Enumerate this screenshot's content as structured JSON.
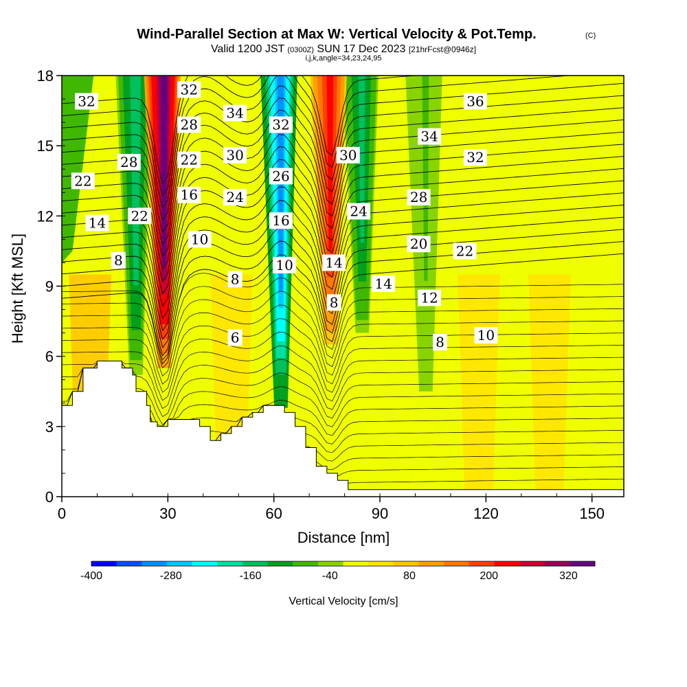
{
  "chart_data": {
    "type": "heatmap",
    "title": "Wind-Parallel Section at Max W: Vertical Velocity & Pot.Temp.",
    "copyright": "(C)",
    "subtitle_main": "Valid 1200 JST",
    "subtitle_utc": "(0300Z)",
    "subtitle_date": "SUN 17 Dec 2023",
    "subtitle_fcst": "[21hrFcst@0946z]",
    "subtitle_params": "i,j,k,angle=34,23,24,95",
    "xlabel": "Distance [nm]",
    "ylabel": "Height [Kft MSL]",
    "xlim": [
      0,
      159
    ],
    "ylim": [
      0,
      18
    ],
    "x_ticks": [
      0,
      30,
      60,
      90,
      120,
      150
    ],
    "y_ticks": [
      0,
      3,
      6,
      9,
      12,
      15,
      18
    ],
    "colorbar": {
      "label": "Vertical Velocity [cm/s]",
      "range": [
        -400,
        360
      ],
      "tick_values": [
        -400,
        -280,
        -160,
        -40,
        80,
        200,
        320
      ],
      "colors": [
        "#0000ff",
        "#0050ff",
        "#0090ff",
        "#00c8ff",
        "#00ffff",
        "#00e0a0",
        "#00c060",
        "#00a020",
        "#40b800",
        "#88d400",
        "#f0ff00",
        "#ffe400",
        "#ffc800",
        "#ffa000",
        "#ff7800",
        "#ff4000",
        "#ff0000",
        "#cc0030",
        "#990055",
        "#660080"
      ]
    },
    "terrain": [
      [
        0,
        3.9
      ],
      [
        1,
        3.9
      ],
      [
        3,
        3.9
      ],
      [
        3,
        4.5
      ],
      [
        6,
        4.5
      ],
      [
        6,
        5.5
      ],
      [
        10,
        5.5
      ],
      [
        10,
        5.8
      ],
      [
        17,
        5.8
      ],
      [
        17,
        5.5
      ],
      [
        20,
        5.5
      ],
      [
        20,
        5.2
      ],
      [
        21,
        5.2
      ],
      [
        21,
        4.5
      ],
      [
        24,
        4.5
      ],
      [
        24,
        3.9
      ],
      [
        25,
        3.9
      ],
      [
        25,
        3.2
      ],
      [
        27,
        3.2
      ],
      [
        27,
        3.0
      ],
      [
        30,
        3.0
      ],
      [
        30,
        3.3
      ],
      [
        39,
        3.3
      ],
      [
        39,
        3.0
      ],
      [
        42,
        3.0
      ],
      [
        42,
        2.4
      ],
      [
        45,
        2.4
      ],
      [
        45,
        2.7
      ],
      [
        48,
        2.7
      ],
      [
        48,
        3.0
      ],
      [
        51,
        3.0
      ],
      [
        51,
        3.4
      ],
      [
        54,
        3.4
      ],
      [
        54,
        3.6
      ],
      [
        57,
        3.6
      ],
      [
        57,
        3.9
      ],
      [
        63,
        3.9
      ],
      [
        63,
        3.6
      ],
      [
        66,
        3.6
      ],
      [
        66,
        3.0
      ],
      [
        69,
        3.0
      ],
      [
        69,
        2.1
      ],
      [
        72,
        2.1
      ],
      [
        72,
        1.3
      ],
      [
        75,
        1.3
      ],
      [
        75,
        1.0
      ],
      [
        78,
        1.0
      ],
      [
        78,
        0.7
      ],
      [
        81,
        0.7
      ],
      [
        81,
        0.3
      ],
      [
        159,
        0.3
      ],
      [
        159,
        0
      ],
      [
        0,
        0
      ]
    ],
    "updrafts": [
      {
        "x": 29,
        "ymin": 5.5,
        "ymax": 18,
        "value": 340
      },
      {
        "x": 76,
        "ymin": 6.5,
        "ymax": 18,
        "value": 220
      }
    ],
    "downdrafts": [
      {
        "x": 62,
        "ymin": 3.8,
        "ymax": 18,
        "value": -300
      },
      {
        "x": 21,
        "ymin": 5.2,
        "ymax": 18,
        "value": -160
      },
      {
        "x": 85,
        "ymin": 7.0,
        "ymax": 18,
        "value": -140
      },
      {
        "x": 103,
        "ymin": 4.5,
        "ymax": 18,
        "value": -60
      }
    ],
    "contour_labels": [
      {
        "text": "32",
        "x": 7,
        "y": 16.9
      },
      {
        "text": "22",
        "x": 6,
        "y": 13.5
      },
      {
        "text": "14",
        "x": 10,
        "y": 11.7
      },
      {
        "text": "8",
        "x": 16,
        "y": 10.1
      },
      {
        "text": "28",
        "x": 19,
        "y": 14.3
      },
      {
        "text": "22",
        "x": 22,
        "y": 12.0
      },
      {
        "text": "32",
        "x": 36,
        "y": 17.4
      },
      {
        "text": "28",
        "x": 36,
        "y": 15.9
      },
      {
        "text": "22",
        "x": 36,
        "y": 14.4
      },
      {
        "text": "16",
        "x": 36,
        "y": 12.9
      },
      {
        "text": "10",
        "x": 39,
        "y": 11.0
      },
      {
        "text": "34",
        "x": 49,
        "y": 16.4
      },
      {
        "text": "30",
        "x": 49,
        "y": 14.6
      },
      {
        "text": "24",
        "x": 49,
        "y": 12.8
      },
      {
        "text": "8",
        "x": 49,
        "y": 9.3
      },
      {
        "text": "6",
        "x": 49,
        "y": 6.8
      },
      {
        "text": "32",
        "x": 62,
        "y": 15.9
      },
      {
        "text": "26",
        "x": 62,
        "y": 13.7
      },
      {
        "text": "16",
        "x": 62,
        "y": 11.8
      },
      {
        "text": "10",
        "x": 63,
        "y": 9.9
      },
      {
        "text": "30",
        "x": 81,
        "y": 14.6
      },
      {
        "text": "24",
        "x": 84,
        "y": 12.2
      },
      {
        "text": "14",
        "x": 77,
        "y": 10.0
      },
      {
        "text": "8",
        "x": 77,
        "y": 8.3
      },
      {
        "text": "14",
        "x": 91,
        "y": 9.1
      },
      {
        "text": "28",
        "x": 101,
        "y": 12.8
      },
      {
        "text": "20",
        "x": 101,
        "y": 10.8
      },
      {
        "text": "12",
        "x": 104,
        "y": 8.5
      },
      {
        "text": "8",
        "x": 107,
        "y": 6.6
      },
      {
        "text": "34",
        "x": 104,
        "y": 15.4
      },
      {
        "text": "32",
        "x": 117,
        "y": 14.5
      },
      {
        "text": "36",
        "x": 117,
        "y": 16.9
      },
      {
        "text": "22",
        "x": 114,
        "y": 10.5
      },
      {
        "text": "10",
        "x": 120,
        "y": 6.9
      }
    ]
  }
}
